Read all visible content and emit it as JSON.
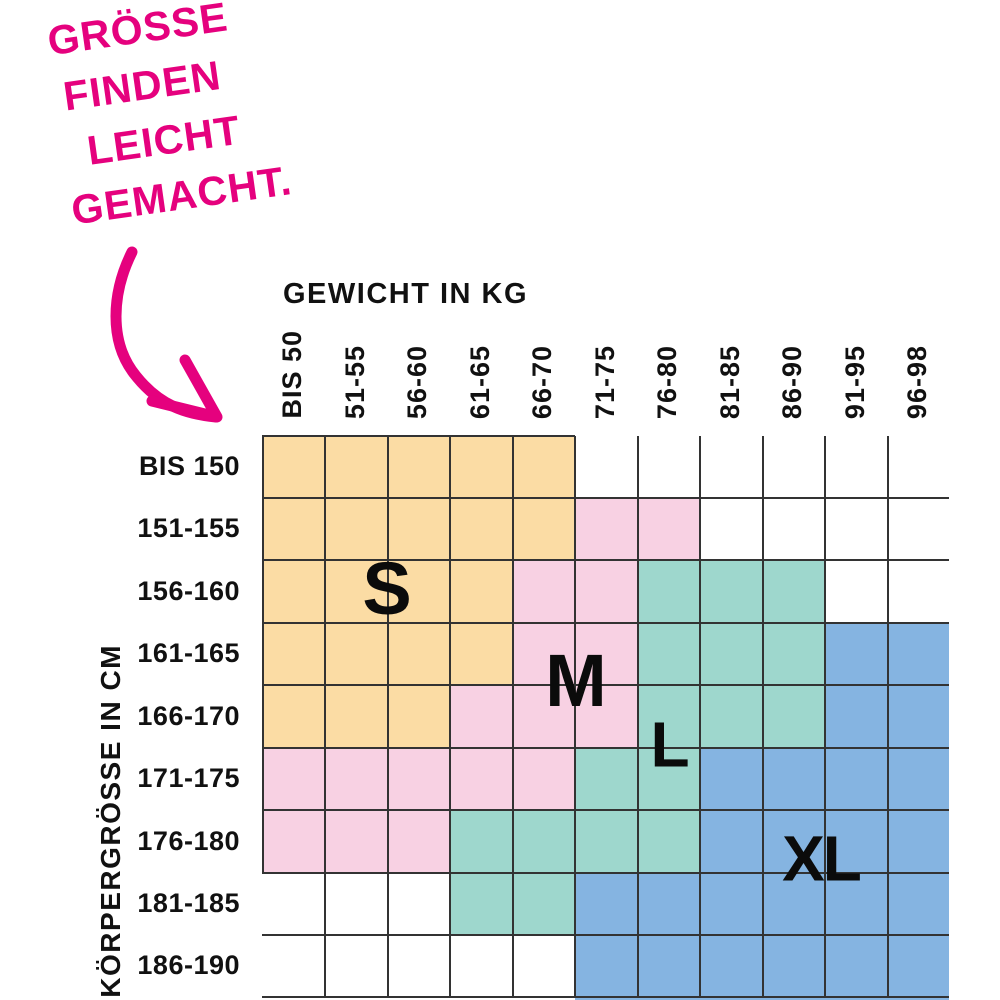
{
  "annotation": {
    "lines": [
      "GRÖSSE",
      "FINDEN",
      "LEICHT",
      "GEMACHT."
    ],
    "color": "#e5017e"
  },
  "chart_data": {
    "type": "heatmap",
    "title": "GRÖSSE FINDEN LEICHT GEMACHT.",
    "xlabel": "GEWICHT IN KG",
    "ylabel": "KÖRPERGRÖSSE IN CM",
    "x_categories": [
      "BIS 50",
      "51-55",
      "56-60",
      "61-65",
      "66-70",
      "71-75",
      "76-80",
      "81-85",
      "86-90",
      "91-95",
      "96-98"
    ],
    "y_categories": [
      "BIS 150",
      "151-155",
      "156-160",
      "161-165",
      "166-170",
      "171-175",
      "176-180",
      "181-185",
      "186-190"
    ],
    "legend": [
      {
        "label": "S",
        "color": "#fbdca4"
      },
      {
        "label": "M",
        "color": "#f8d1e3"
      },
      {
        "label": "L",
        "color": "#9ed7cd"
      },
      {
        "label": "XL",
        "color": "#85b4e1"
      }
    ],
    "grid": [
      [
        "S",
        "S",
        "S",
        "S",
        "S",
        null,
        null,
        null,
        null,
        null,
        null
      ],
      [
        "S",
        "S",
        "S",
        "S",
        "S",
        "M",
        "M",
        null,
        null,
        null,
        null
      ],
      [
        "S",
        "S",
        "S",
        "S",
        "M",
        "M",
        "L",
        "L",
        "L",
        null,
        null
      ],
      [
        "S",
        "S",
        "S",
        "S",
        "M",
        "M",
        "L",
        "L",
        "L",
        "XL",
        "XL"
      ],
      [
        "S",
        "S",
        "S",
        "M",
        "M",
        "M",
        "L",
        "L",
        "L",
        "XL",
        "XL"
      ],
      [
        "M",
        "M",
        "M",
        "M",
        "M",
        "L",
        "L",
        "XL",
        "XL",
        "XL",
        "XL"
      ],
      [
        "M",
        "M",
        "M",
        "L",
        "L",
        "L",
        "L",
        "XL",
        "XL",
        "XL",
        "XL"
      ],
      [
        null,
        null,
        null,
        "L",
        "L",
        "XL",
        "XL",
        "XL",
        "XL",
        "XL",
        "XL"
      ],
      [
        null,
        null,
        null,
        null,
        null,
        "XL",
        "XL",
        "XL",
        "XL",
        "XL",
        "XL"
      ]
    ],
    "overflow_row": [
      null,
      null,
      null,
      null,
      null,
      "XL",
      "XL",
      "XL",
      "XL",
      "XL",
      "XL"
    ],
    "grid_line_color": "#333333",
    "empty_color": "#ffffff",
    "accent_color": "#e5017e"
  }
}
